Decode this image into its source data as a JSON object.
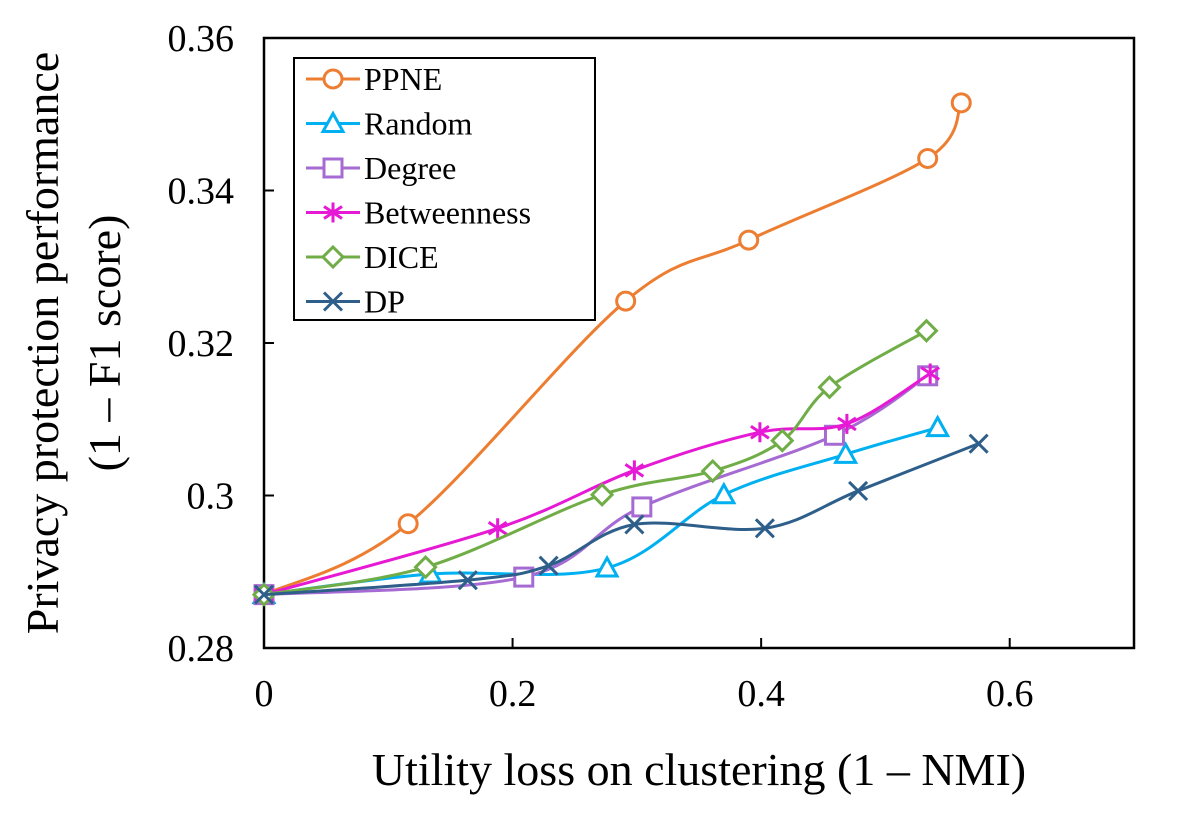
{
  "chart_data": {
    "type": "line",
    "title": "",
    "xlabel": "Utility loss on clustering (1 – NMI)",
    "ylabel_line1": "Privacy protection performance",
    "ylabel_line2": "(1 – F1 score)",
    "xlim": [
      0,
      0.7
    ],
    "ylim": [
      0.28,
      0.36
    ],
    "xticks": [
      0,
      0.2,
      0.4,
      0.6
    ],
    "xtick_labels": [
      "0",
      "0.2",
      "0.4",
      "0.6"
    ],
    "yticks": [
      0.28,
      0.3,
      0.32,
      0.34,
      0.36
    ],
    "ytick_labels": [
      "0.28",
      "0.3",
      "0.32",
      "0.34",
      "0.36"
    ],
    "legend_position": "top-left",
    "series": [
      {
        "name": "PPNE",
        "color": "#ED7D31",
        "marker": "circle",
        "x": [
          0,
          0.116,
          0.291,
          0.39,
          0.534,
          0.561
        ],
        "y": [
          0.287,
          0.2963,
          0.3255,
          0.3335,
          0.3442,
          0.3515
        ]
      },
      {
        "name": "Random",
        "color": "#00B0F0",
        "marker": "triangle",
        "x": [
          0,
          0.134,
          0.276,
          0.37,
          0.468,
          0.542
        ],
        "y": [
          0.287,
          0.2897,
          0.2905,
          0.3001,
          0.3054,
          0.3089
        ]
      },
      {
        "name": "Degree",
        "color": "#A66BD3",
        "marker": "square",
        "x": [
          0,
          0.209,
          0.304,
          0.459,
          0.534
        ],
        "y": [
          0.287,
          0.2893,
          0.2985,
          0.3079,
          0.3157
        ]
      },
      {
        "name": "Betweenness",
        "color": "#E619D4",
        "marker": "asterisk",
        "x": [
          0,
          0.188,
          0.298,
          0.399,
          0.469,
          0.536
        ],
        "y": [
          0.287,
          0.2957,
          0.3033,
          0.3083,
          0.3094,
          0.316
        ]
      },
      {
        "name": "DICE",
        "color": "#70AD47",
        "marker": "diamond",
        "x": [
          0,
          0.13,
          0.272,
          0.361,
          0.417,
          0.455,
          0.533
        ],
        "y": [
          0.287,
          0.2906,
          0.3001,
          0.3032,
          0.3072,
          0.3142,
          0.3216
        ]
      },
      {
        "name": "DP",
        "color": "#2E5F8A",
        "marker": "x",
        "x": [
          0,
          0.164,
          0.229,
          0.298,
          0.403,
          0.478,
          0.575
        ],
        "y": [
          0.287,
          0.2889,
          0.2908,
          0.2962,
          0.2957,
          0.3006,
          0.3068
        ]
      }
    ]
  }
}
